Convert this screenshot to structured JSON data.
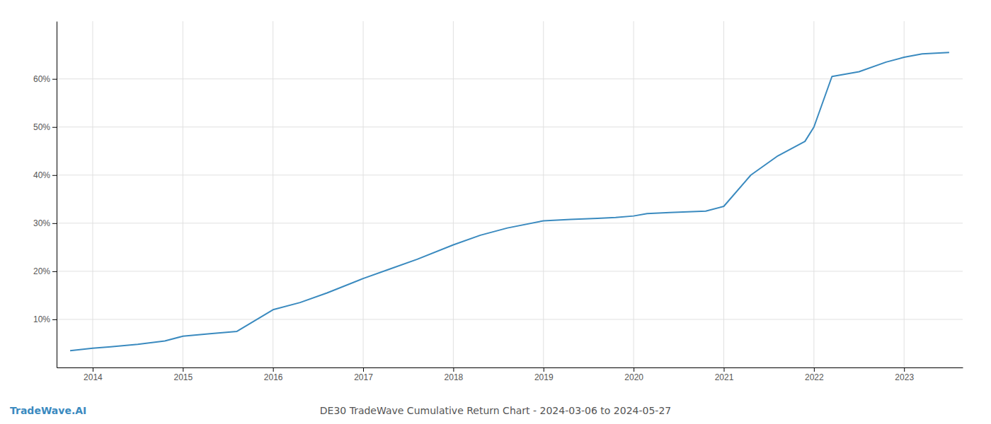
{
  "chart_data": {
    "type": "line",
    "title": "DE30 TradeWave Cumulative Return Chart - 2024-03-06 to 2024-05-27",
    "annotations": [
      "TradeWave.AI"
    ],
    "x": [
      2013.75,
      2014.0,
      2014.2,
      2014.5,
      2014.8,
      2015.0,
      2015.3,
      2015.6,
      2016.0,
      2016.3,
      2016.6,
      2017.0,
      2017.3,
      2017.6,
      2018.0,
      2018.3,
      2018.6,
      2019.0,
      2019.3,
      2019.6,
      2019.8,
      2020.0,
      2020.15,
      2020.4,
      2020.8,
      2021.0,
      2021.3,
      2021.6,
      2021.9,
      2022.0,
      2022.2,
      2022.5,
      2022.8,
      2023.0,
      2023.2,
      2023.5
    ],
    "values": [
      3.5,
      4.0,
      4.3,
      4.8,
      5.5,
      6.5,
      7.0,
      7.5,
      12.0,
      13.5,
      15.5,
      18.5,
      20.5,
      22.5,
      25.5,
      27.5,
      29.0,
      30.5,
      30.8,
      31.0,
      31.2,
      31.5,
      32.0,
      32.2,
      32.5,
      33.5,
      40.0,
      44.0,
      47.0,
      50.0,
      60.5,
      61.5,
      63.5,
      64.5,
      65.2,
      65.5
    ],
    "color": "#3a8abf",
    "xlim": [
      2013.6,
      2023.65
    ],
    "ylim": [
      0,
      72
    ],
    "xticks": [
      2014,
      2015,
      2016,
      2017,
      2018,
      2019,
      2020,
      2021,
      2022,
      2023
    ],
    "yticks": [
      {
        "value": 10,
        "label": "10%"
      },
      {
        "value": 20,
        "label": "20%"
      },
      {
        "value": 30,
        "label": "30%"
      },
      {
        "value": 40,
        "label": "40%"
      },
      {
        "value": 50,
        "label": "50%"
      },
      {
        "value": 60,
        "label": "60%"
      }
    ],
    "grid": true
  }
}
